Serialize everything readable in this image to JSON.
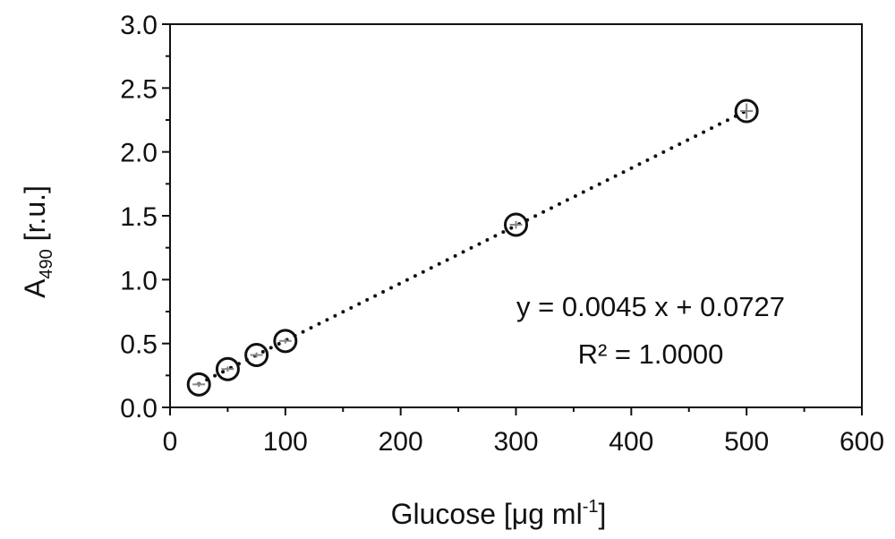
{
  "chart_data": {
    "type": "scatter",
    "title": "",
    "xlabel": {
      "main": "Glucose [μg ml",
      "sup": "-1",
      "end": "]"
    },
    "ylabel": {
      "main": "A",
      "sub": "490",
      "end": " [r.u.]"
    },
    "xlim": [
      0,
      600
    ],
    "ylim": [
      0.0,
      3.0
    ],
    "xticks": [
      "0",
      "100",
      "200",
      "300",
      "400",
      "500",
      "600"
    ],
    "yticks": [
      "0.0",
      "0.5",
      "1.0",
      "1.5",
      "2.0",
      "2.5",
      "3.0"
    ],
    "grid": false,
    "legend": "none",
    "series": [
      {
        "marker": "open-circle",
        "x": [
          25,
          50,
          75,
          100,
          300,
          500
        ],
        "y": [
          0.18,
          0.3,
          0.41,
          0.52,
          1.43,
          2.32
        ],
        "error": [
          0.02,
          0.02,
          0.02,
          0.02,
          0.03,
          0.06
        ]
      }
    ],
    "trendline": {
      "style": "dotted",
      "slope": 0.0045,
      "intercept": 0.0727,
      "x_range": [
        25,
        500
      ]
    },
    "annotations": {
      "equation": "y = 0.0045 x + 0.0727",
      "r2": "R² = 1.0000"
    },
    "colors": {
      "axis": "#111111",
      "marker": "#111111",
      "error_bar": "#888888",
      "trendline": "#111111"
    }
  }
}
